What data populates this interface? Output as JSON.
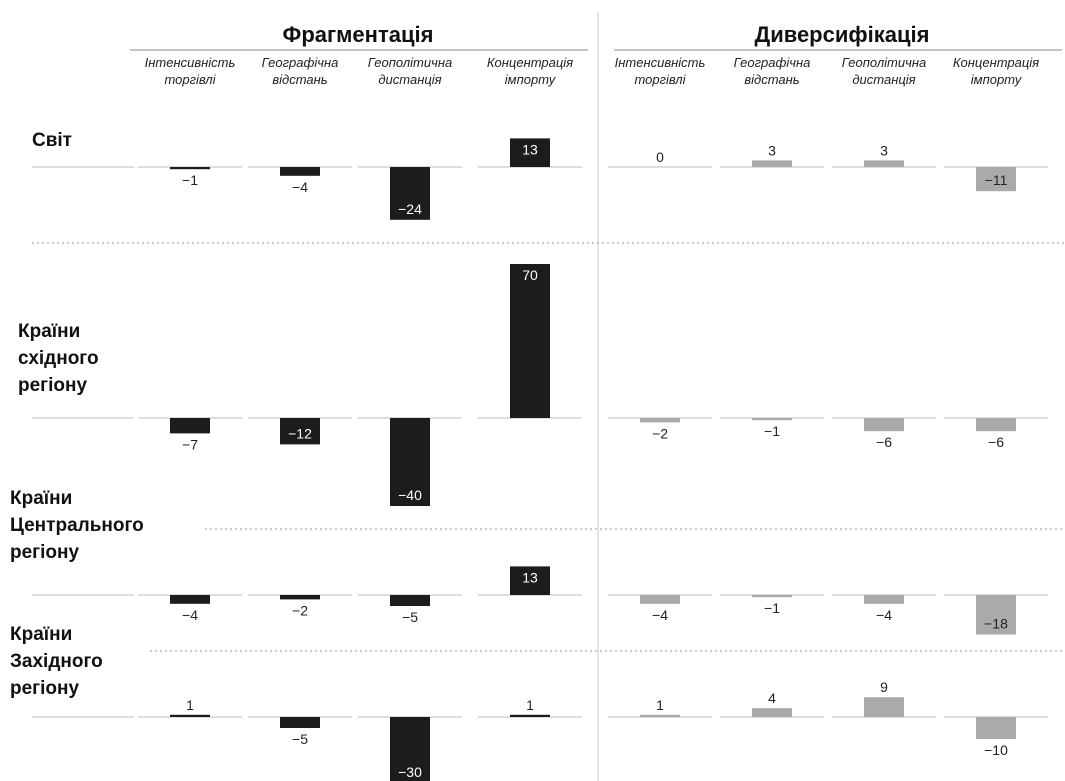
{
  "chart_data": {
    "type": "bar",
    "groups": [
      {
        "title": "Фрагментація",
        "color": "#1c1c1c",
        "value_text_color": "#ffffff"
      },
      {
        "title": "Диверсифікація",
        "color": "#aaaaaa",
        "value_text_color": "#222222"
      }
    ],
    "metrics": [
      [
        "Інтенсивність",
        "торгівлі"
      ],
      [
        "Географічна",
        "відстань"
      ],
      [
        "Геополітична",
        "дистанція"
      ],
      [
        "Концентрація",
        "імпорту"
      ]
    ],
    "rows": [
      {
        "label": [
          "Світ"
        ],
        "fragmentation": [
          -1,
          -4,
          -24,
          13
        ],
        "diversification": [
          0,
          3,
          3,
          -11
        ]
      },
      {
        "label": [
          "Країни",
          "східного",
          "регіону"
        ],
        "fragmentation": [
          -7,
          -12,
          -40,
          70
        ],
        "diversification": [
          -2,
          -1,
          -6,
          -6
        ]
      },
      {
        "label": [
          "Країни",
          "Центрального",
          "регіону"
        ],
        "fragmentation": [
          -4,
          -2,
          -5,
          13
        ],
        "diversification": [
          -4,
          -1,
          -4,
          -18
        ]
      },
      {
        "label": [
          "Країни",
          "Західного",
          "регіону"
        ],
        "fragmentation": [
          1,
          -5,
          -30,
          1
        ],
        "diversification": [
          1,
          4,
          9,
          -10
        ]
      }
    ]
  }
}
